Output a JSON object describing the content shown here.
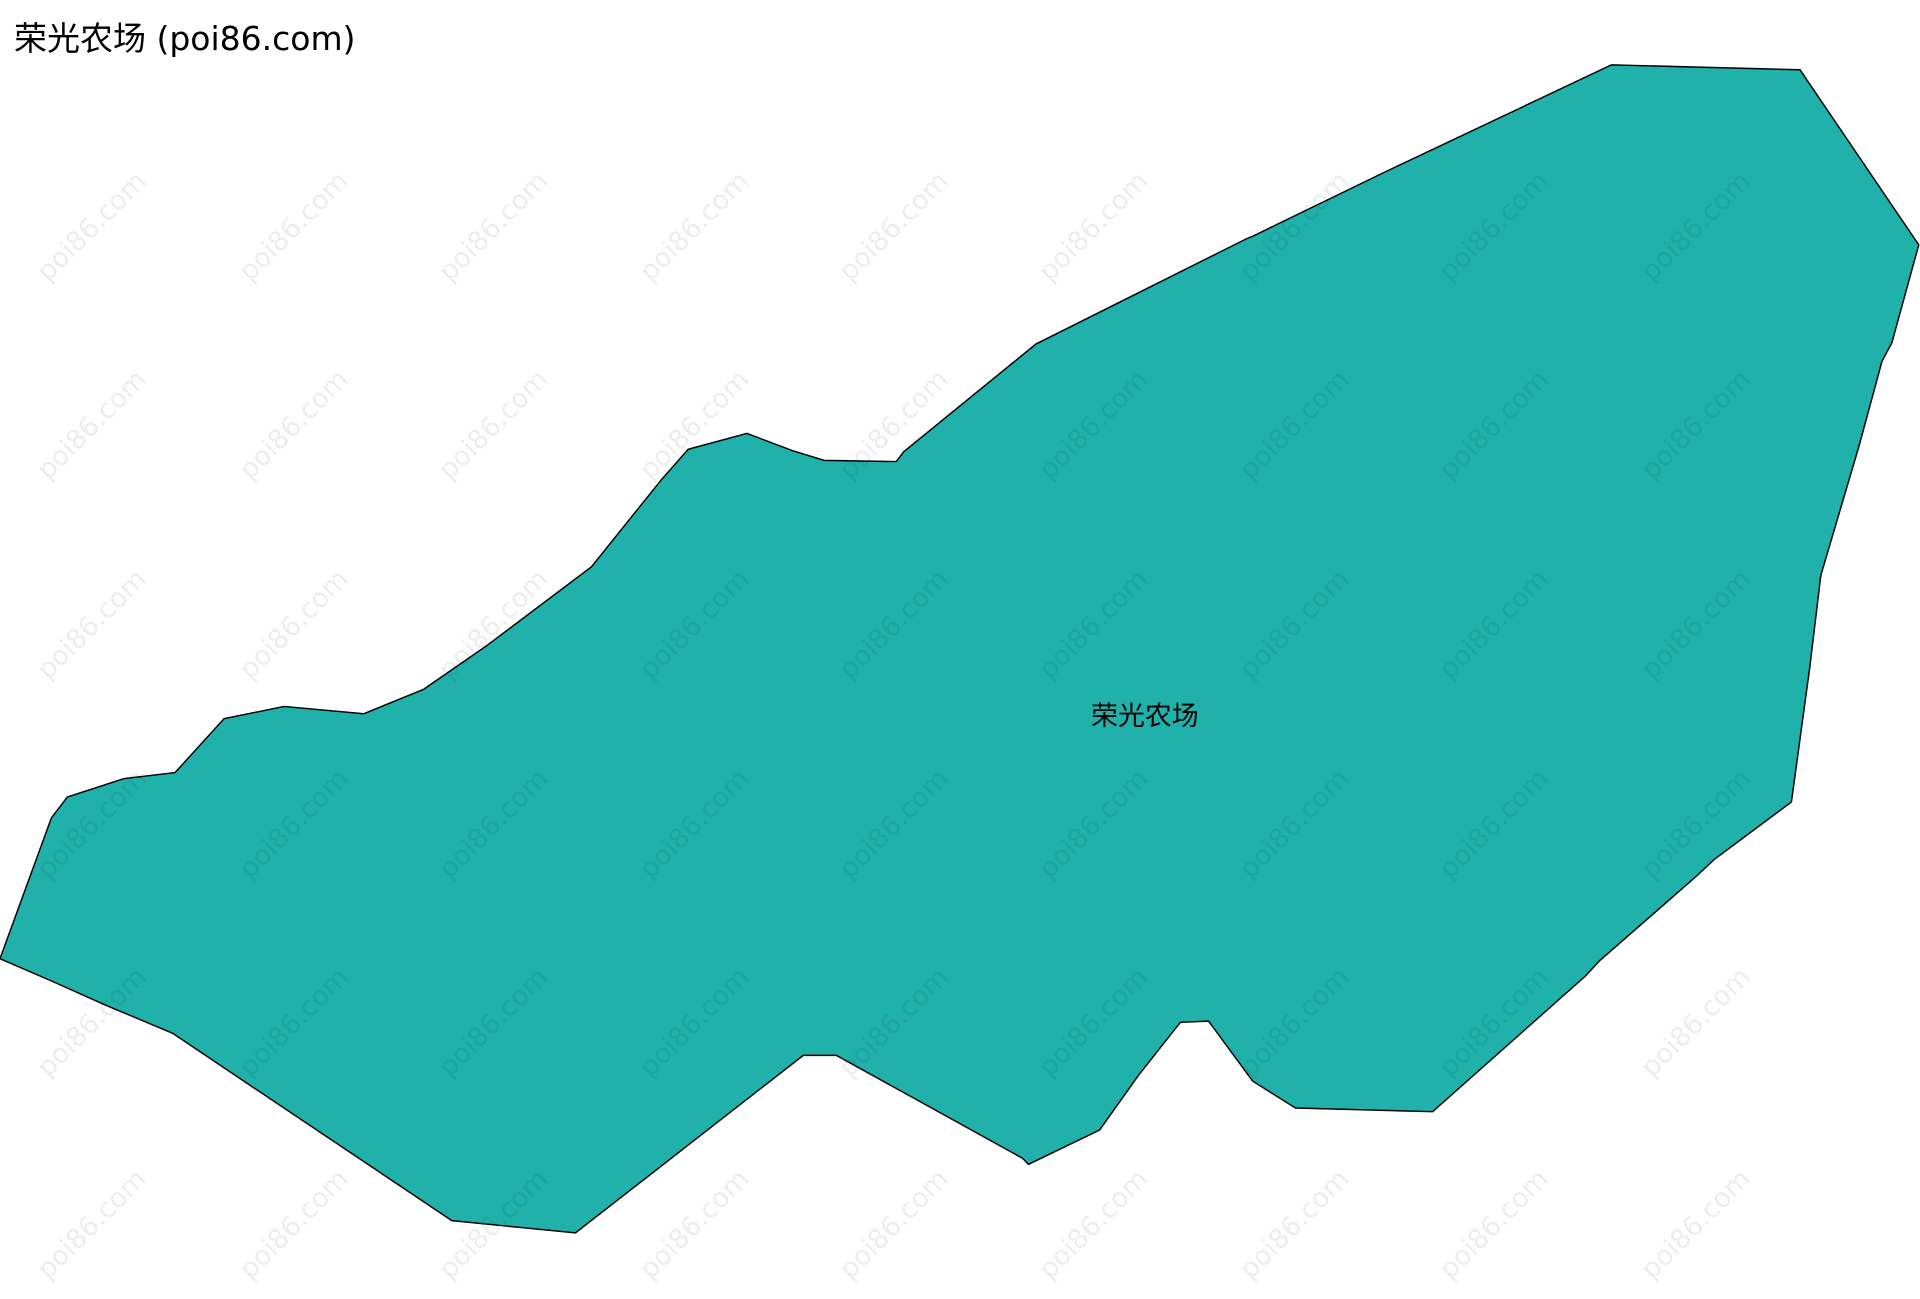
{
  "title": "荣光农场 (poi86.com)",
  "map": {
    "region_name": "荣光农场",
    "fill_color": "#20b2aa",
    "stroke_color": "#000000",
    "watermark": "poi86.com"
  }
}
